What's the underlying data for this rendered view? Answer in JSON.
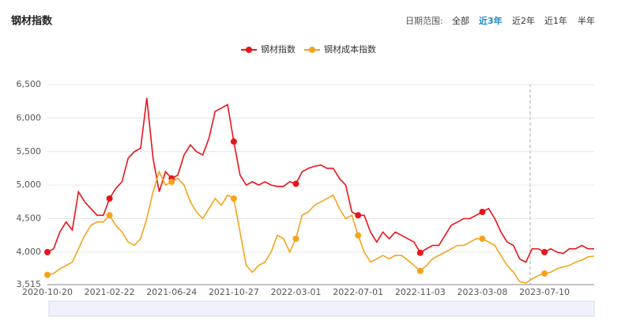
{
  "header": {
    "title": "钢材指数",
    "range_label": "日期范围:",
    "range_options": [
      "全部",
      "近3年",
      "近2年",
      "近1年",
      "半年"
    ],
    "active_option": 1
  },
  "chart_data": {
    "type": "line",
    "categories": [
      "2020-10-20",
      null,
      null,
      null,
      null,
      null,
      null,
      null,
      null,
      null,
      "2021-02-22",
      null,
      null,
      null,
      null,
      null,
      null,
      null,
      null,
      null,
      "2021-06-24",
      null,
      null,
      null,
      null,
      null,
      null,
      null,
      null,
      null,
      "2021-10-27",
      null,
      null,
      null,
      null,
      null,
      null,
      null,
      null,
      null,
      "2022-03-01",
      null,
      null,
      null,
      null,
      null,
      null,
      null,
      null,
      null,
      "2022-07-01",
      null,
      null,
      null,
      null,
      null,
      null,
      null,
      null,
      null,
      "2022-11-03",
      null,
      null,
      null,
      null,
      null,
      null,
      null,
      null,
      null,
      "2023-03-08",
      null,
      null,
      null,
      null,
      null,
      null,
      null,
      null,
      null,
      "2023-07-10",
      null,
      null,
      null,
      null,
      null,
      null,
      null,
      null
    ],
    "series": [
      {
        "name": "钢材指数",
        "color": "#e8141b",
        "values": [
          4000,
          4050,
          4300,
          4450,
          4330,
          4900,
          4750,
          4650,
          4550,
          4550,
          4800,
          4950,
          5050,
          5400,
          5500,
          5550,
          6300,
          5400,
          4900,
          5200,
          5100,
          5150,
          5450,
          5600,
          5500,
          5450,
          5700,
          6100,
          6150,
          6200,
          5650,
          5150,
          5000,
          5050,
          5000,
          5050,
          5000,
          4980,
          4980,
          5050,
          5020,
          5200,
          5250,
          5280,
          5300,
          5250,
          5250,
          5100,
          5000,
          4600,
          4550,
          4550,
          4300,
          4150,
          4300,
          4200,
          4300,
          4250,
          4200,
          4150,
          3990,
          4050,
          4100,
          4100,
          4250,
          4400,
          4450,
          4500,
          4500,
          4550,
          4600,
          4650,
          4500,
          4300,
          4150,
          4100,
          3900,
          3850,
          4050,
          4050,
          4000,
          4050,
          4000,
          3980,
          4050,
          4050,
          4100,
          4050,
          4050
        ]
      },
      {
        "name": "钢材成本指数",
        "color": "#f5a31a",
        "values": [
          3660,
          3680,
          3750,
          3800,
          3850,
          4050,
          4250,
          4400,
          4450,
          4450,
          4550,
          4400,
          4300,
          4150,
          4100,
          4200,
          4500,
          4900,
          5200,
          5000,
          5050,
          5100,
          5000,
          4750,
          4600,
          4500,
          4650,
          4800,
          4700,
          4850,
          4800,
          4300,
          3800,
          3700,
          3800,
          3850,
          4000,
          4250,
          4200,
          4000,
          4200,
          4550,
          4600,
          4700,
          4750,
          4800,
          4850,
          4650,
          4500,
          4550,
          4250,
          4000,
          3850,
          3900,
          3950,
          3900,
          3950,
          3950,
          3880,
          3800,
          3720,
          3800,
          3900,
          3950,
          4000,
          4050,
          4100,
          4100,
          4150,
          4200,
          4200,
          4150,
          4100,
          3950,
          3800,
          3700,
          3560,
          3540,
          3600,
          3650,
          3680,
          3700,
          3750,
          3780,
          3800,
          3850,
          3880,
          3930,
          3940
        ]
      }
    ],
    "ylim": [
      3515,
      6500
    ],
    "yticks": [
      {
        "value": 3515,
        "label": "3,515"
      },
      {
        "value": 4000,
        "label": "4,000"
      },
      {
        "value": 4500,
        "label": "4,500"
      },
      {
        "value": 5000,
        "label": "5,000"
      },
      {
        "value": 5500,
        "label": "5,500"
      },
      {
        "value": 6000,
        "label": "6,000"
      },
      {
        "value": 6500,
        "label": "6,500"
      }
    ],
    "grid": true,
    "legend": "top"
  }
}
